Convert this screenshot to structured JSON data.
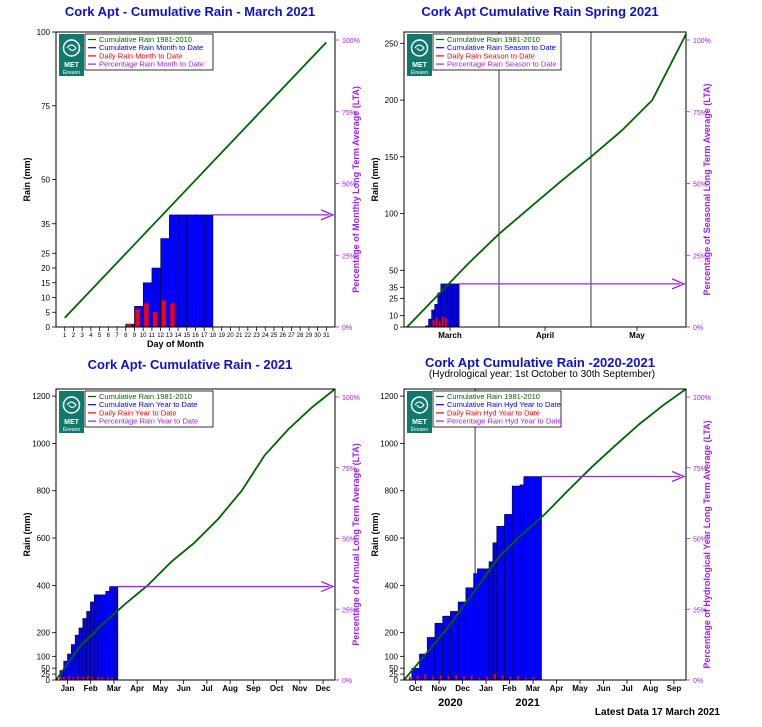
{
  "footer": "Latest Data 17 March 2021",
  "logo": {
    "line1": "MET",
    "line2": "Éireann"
  },
  "colors": {
    "lta": "#006400",
    "cumulative": "#0000ff",
    "daily": "#ff0000",
    "percent": "#a020f0",
    "title": "#1010d0"
  },
  "chart_data": [
    {
      "type": "bar",
      "title": "Cork Apt - Cumulative Rain -  March   2021",
      "xlabel": "Day of Month",
      "ylabel": "Rain (mm)",
      "y2label": "Percentage of Monthly Long Term Average (LTA)",
      "legend": [
        "Cumulative Rain 1981-2010",
        "Cumulative Rain Month to Date",
        "Daily Rain Month to Date",
        "Percentage Rain Month to Date"
      ],
      "ylim": [
        0,
        100
      ],
      "yticks": [
        0,
        5,
        10,
        15,
        20,
        25,
        35,
        50,
        75,
        100
      ],
      "y2ticks": [
        "0%",
        "25%",
        "50%",
        "75%",
        "100%"
      ],
      "xticks": [
        "1",
        "2",
        "3",
        "4",
        "5",
        "6",
        "7",
        "8",
        "9",
        "10",
        "11",
        "12",
        "13",
        "14",
        "15",
        "16",
        "17",
        "18",
        "19",
        "20",
        "21",
        "22",
        "23",
        "24",
        "25",
        "26",
        "27",
        "28",
        "29",
        "30",
        "31"
      ],
      "lta": {
        "x": [
          1,
          31
        ],
        "y": [
          3.1,
          96.5
        ]
      },
      "cumulative": {
        "x": [
          8,
          9,
          10,
          11,
          12,
          13,
          14,
          15,
          16,
          17
        ],
        "y": [
          1.0,
          7.0,
          15.0,
          20.0,
          30.0,
          38.0,
          38.0,
          38.0,
          38.0,
          38.0
        ]
      },
      "daily": {
        "x": [
          8,
          9,
          10,
          11,
          12,
          13
        ],
        "y": [
          1.0,
          6.0,
          8.0,
          5.0,
          9.0,
          8.0
        ]
      },
      "percent_to_date": 40
    },
    {
      "type": "bar",
      "title": "Cork Apt Cumulative Rain Spring 2021",
      "ylabel": "Rain (mm)",
      "y2label": "Percentage  of Seasonal Long Term Average (LTA)",
      "legend": [
        "Cumulative Rain 1981-2010",
        "Cumulative Rain Season to Date",
        "Daily Rain Season to Date",
        "Percentage Rain Season to Date"
      ],
      "ylim": [
        0,
        260
      ],
      "yticks": [
        0,
        10,
        25,
        35,
        50,
        100,
        150,
        200,
        250
      ],
      "y2ticks": [
        "0%",
        "25%",
        "50%",
        "75%",
        "100%"
      ],
      "xticks": [
        "March",
        "April",
        "May"
      ],
      "lta": {
        "x": [
          1,
          11,
          21,
          31,
          41,
          51,
          61,
          71,
          81,
          92
        ],
        "y": [
          0,
          28,
          56,
          82,
          105,
          128,
          150,
          173,
          200,
          258
        ]
      },
      "cumulative": {
        "x": [
          7,
          8,
          9,
          10,
          11,
          12,
          13,
          14,
          15,
          16,
          17
        ],
        "y": [
          1.0,
          7.0,
          15.0,
          20.0,
          30.0,
          38.0,
          38.0,
          38.0,
          38.0,
          38.0,
          38.0
        ]
      },
      "daily": {
        "x": [
          8,
          9,
          10,
          11,
          12,
          13
        ],
        "y": [
          1.0,
          6.0,
          8.0,
          5.0,
          9.0,
          8.0
        ]
      },
      "percent_to_date": 15
    },
    {
      "type": "bar",
      "title": "Cork Apt- Cumulative Rain - 2021",
      "ylabel": "Rain (mm)",
      "y2label": "Percentage of Annual  Long Term Average (LTA)",
      "legend": [
        "Cumulative Rain 1981-2010",
        "Cumulative Rain Year to Date",
        "Daily Rain Year to Date",
        "Percentage Rain Year to Date"
      ],
      "ylim": [
        0,
        1230
      ],
      "yticks": [
        0,
        25,
        50,
        100,
        200,
        400,
        600,
        800,
        1000,
        1200
      ],
      "y2ticks": [
        "0%",
        "25%",
        "50%",
        "75%",
        "100%"
      ],
      "xticks": [
        "Jan",
        "Feb",
        "Mar",
        "Apr",
        "May",
        "Jun",
        "Jul",
        "Aug",
        "Sep",
        "Oct",
        "Nov",
        "Dec"
      ],
      "lta": {
        "x": [
          0,
          31,
          59,
          90,
          120,
          151,
          181,
          212,
          243,
          273,
          304,
          334,
          365
        ],
        "y": [
          0,
          140,
          230,
          320,
          400,
          500,
          580,
          680,
          800,
          950,
          1060,
          1150,
          1230
        ]
      },
      "cumulative": {
        "x": [
          0,
          5,
          10,
          15,
          20,
          25,
          30,
          35,
          40,
          45,
          50,
          55,
          60,
          65,
          70,
          76
        ],
        "y": [
          0,
          40,
          80,
          110,
          150,
          190,
          220,
          260,
          290,
          330,
          360,
          360,
          360,
          375,
          395,
          395
        ]
      },
      "daily": {
        "x": [
          3,
          8,
          14,
          20,
          26,
          33,
          39,
          45,
          52,
          58,
          65,
          71
        ],
        "y": [
          15,
          12,
          18,
          10,
          14,
          12,
          16,
          11,
          13,
          10,
          12,
          9
        ]
      },
      "percent_to_date": 32
    },
    {
      "type": "bar",
      "title": "Cork Apt Cumulative Rain -2020-2021",
      "subtitle": "(Hydrological year: 1st October to 30th September)",
      "ylabel": "Rain (mm)",
      "y2label": "Percentage  of Hydrological Year Long Term Average (LTA)",
      "legend": [
        "Cumulative Rain 1981-2010",
        "Cumulative Rain Hyd Year to Date",
        "Daily Rain Hyd Year to Date",
        "Percentage Rain Hyd Year to Date"
      ],
      "ylim": [
        0,
        1230
      ],
      "yticks": [
        0,
        25,
        50,
        100,
        200,
        400,
        600,
        800,
        1000,
        1200
      ],
      "y2ticks": [
        "0%",
        "25%",
        "50%",
        "75%",
        "100%"
      ],
      "xticks": [
        "Oct",
        "Nov",
        "Dec",
        "Jan",
        "Feb",
        "Mar",
        "Apr",
        "May",
        "Jun",
        "Jul",
        "Aug",
        "Sep"
      ],
      "years": [
        "2020",
        "2021"
      ],
      "lta": {
        "x": [
          0,
          31,
          61,
          92,
          123,
          151,
          182,
          212,
          243,
          273,
          304,
          335,
          365
        ],
        "y": [
          0,
          120,
          240,
          380,
          520,
          610,
          700,
          800,
          900,
          990,
          1080,
          1160,
          1230
        ]
      },
      "cumulative": {
        "x": [
          0,
          10,
          20,
          30,
          40,
          50,
          60,
          70,
          80,
          90,
          95,
          100,
          110,
          115,
          120,
          130,
          140,
          150,
          155,
          168
        ],
        "y": [
          0,
          50,
          110,
          180,
          240,
          270,
          290,
          330,
          390,
          450,
          470,
          470,
          500,
          580,
          650,
          700,
          820,
          825,
          860,
          860
        ]
      },
      "daily": {
        "x": [
          5,
          15,
          25,
          35,
          45,
          55,
          65,
          75,
          85,
          95,
          105,
          115,
          125,
          135,
          145,
          155,
          165
        ],
        "y": [
          14,
          18,
          25,
          12,
          20,
          16,
          22,
          15,
          18,
          10,
          14,
          24,
          19,
          12,
          17,
          11,
          13
        ]
      },
      "percent_to_date": 70
    }
  ]
}
